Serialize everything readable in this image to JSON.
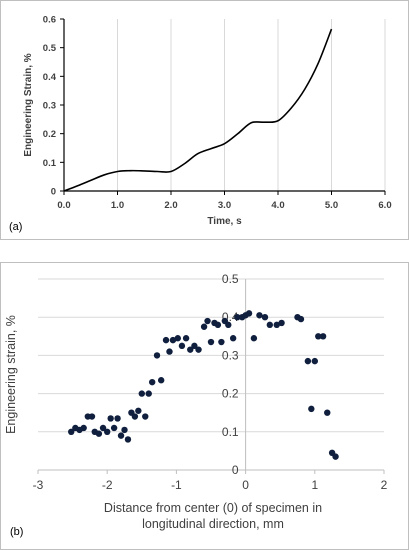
{
  "chart_data": [
    {
      "type": "line",
      "panel_label": "(a)",
      "xlabel": "Time, s",
      "ylabel": "Engineering Strain, %",
      "xlim": [
        0,
        6
      ],
      "ylim": [
        0,
        0.6
      ],
      "x_ticks": [
        "0.0",
        "1.0",
        "2.0",
        "3.0",
        "4.0",
        "5.0",
        "6.0"
      ],
      "y_ticks": [
        "0",
        "0.1",
        "0.2",
        "0.3",
        "0.4",
        "0.5",
        "0.6"
      ],
      "grid": "vertical",
      "series": [
        {
          "color": "#000000",
          "x": [
            0,
            0.25,
            0.5,
            0.75,
            1.0,
            1.25,
            1.5,
            1.75,
            2.0,
            2.25,
            2.5,
            2.75,
            3.0,
            3.25,
            3.5,
            3.75,
            4.0,
            4.25,
            4.5,
            4.75,
            5.0
          ],
          "y": [
            0,
            0.018,
            0.037,
            0.056,
            0.068,
            0.071,
            0.07,
            0.068,
            0.068,
            0.095,
            0.13,
            0.148,
            0.165,
            0.2,
            0.238,
            0.24,
            0.245,
            0.29,
            0.355,
            0.445,
            0.565
          ]
        }
      ]
    },
    {
      "type": "scatter",
      "panel_label": "(b)",
      "xlabel": "Distance from center (0) of specimen in longitudinal direction, mm",
      "xlabel_lines": [
        "Distance from center (0) of specimen in",
        "longitudinal direction, mm"
      ],
      "ylabel": "Engineering strain, %",
      "xlim": [
        -3,
        2
      ],
      "ylim": [
        0,
        0.5
      ],
      "x_ticks": [
        "-3",
        "-2",
        "-1",
        "0",
        "1",
        "2"
      ],
      "y_ticks": [
        "0",
        "0.1",
        "0.2",
        "0.3",
        "0.4",
        "0.5"
      ],
      "grid": "horizontal",
      "marker_color": "#0f1f3d",
      "points": [
        [
          -2.52,
          0.1
        ],
        [
          -2.46,
          0.11
        ],
        [
          -2.4,
          0.105
        ],
        [
          -2.34,
          0.11
        ],
        [
          -2.28,
          0.14
        ],
        [
          -2.22,
          0.14
        ],
        [
          -2.18,
          0.1
        ],
        [
          -2.12,
          0.095
        ],
        [
          -2.06,
          0.11
        ],
        [
          -2.0,
          0.1
        ],
        [
          -1.95,
          0.135
        ],
        [
          -1.9,
          0.11
        ],
        [
          -1.85,
          0.135
        ],
        [
          -1.8,
          0.09
        ],
        [
          -1.75,
          0.105
        ],
        [
          -1.7,
          0.08
        ],
        [
          -1.65,
          0.15
        ],
        [
          -1.6,
          0.14
        ],
        [
          -1.55,
          0.155
        ],
        [
          -1.5,
          0.2
        ],
        [
          -1.45,
          0.14
        ],
        [
          -1.4,
          0.2
        ],
        [
          -1.35,
          0.23
        ],
        [
          -1.28,
          0.3
        ],
        [
          -1.22,
          0.235
        ],
        [
          -1.15,
          0.34
        ],
        [
          -1.1,
          0.31
        ],
        [
          -1.05,
          0.34
        ],
        [
          -0.98,
          0.345
        ],
        [
          -0.92,
          0.325
        ],
        [
          -0.86,
          0.345
        ],
        [
          -0.8,
          0.315
        ],
        [
          -0.74,
          0.325
        ],
        [
          -0.68,
          0.315
        ],
        [
          -0.6,
          0.375
        ],
        [
          -0.55,
          0.39
        ],
        [
          -0.5,
          0.335
        ],
        [
          -0.45,
          0.385
        ],
        [
          -0.4,
          0.38
        ],
        [
          -0.35,
          0.335
        ],
        [
          -0.3,
          0.39
        ],
        [
          -0.25,
          0.38
        ],
        [
          -0.18,
          0.345
        ],
        [
          -0.12,
          0.4
        ],
        [
          -0.05,
          0.4
        ],
        [
          0.0,
          0.405
        ],
        [
          0.05,
          0.41
        ],
        [
          0.12,
          0.345
        ],
        [
          0.2,
          0.405
        ],
        [
          0.28,
          0.4
        ],
        [
          0.35,
          0.38
        ],
        [
          0.45,
          0.38
        ],
        [
          0.52,
          0.385
        ],
        [
          0.75,
          0.4
        ],
        [
          0.8,
          0.395
        ],
        [
          0.9,
          0.285
        ],
        [
          0.95,
          0.16
        ],
        [
          1.0,
          0.285
        ],
        [
          1.05,
          0.35
        ],
        [
          1.12,
          0.35
        ],
        [
          1.18,
          0.15
        ],
        [
          1.25,
          0.045
        ],
        [
          1.3,
          0.035
        ]
      ]
    }
  ]
}
